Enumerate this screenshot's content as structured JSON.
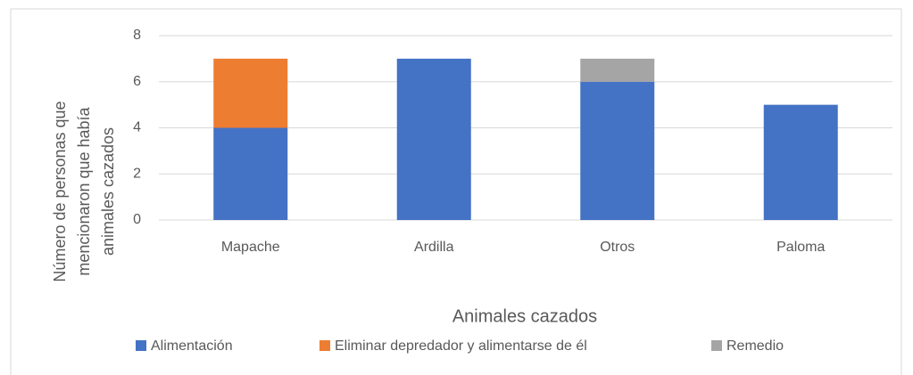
{
  "chart_data": {
    "type": "stacked_bar",
    "xlabel": "Animales cazados",
    "ylabel": [
      "Número de personas que",
      "mencionaron que había",
      "animales cazados"
    ],
    "categories": [
      "Mapache",
      "Ardilla",
      "Otros",
      "Paloma"
    ],
    "series": [
      {
        "name": "Alimentación",
        "color": "#4472c4",
        "values": [
          4,
          7,
          6,
          5
        ]
      },
      {
        "name": "Eliminar depredador y alimentarse de él",
        "color": "#ed7d31",
        "values": [
          3,
          0,
          0,
          0
        ]
      },
      {
        "name": "Remedio",
        "color": "#a5a5a5",
        "values": [
          0,
          0,
          1,
          0
        ]
      }
    ],
    "ylim": [
      0,
      8
    ],
    "yticks": [
      0,
      2,
      4,
      6,
      8
    ],
    "grid": true,
    "legend": "bottom"
  }
}
